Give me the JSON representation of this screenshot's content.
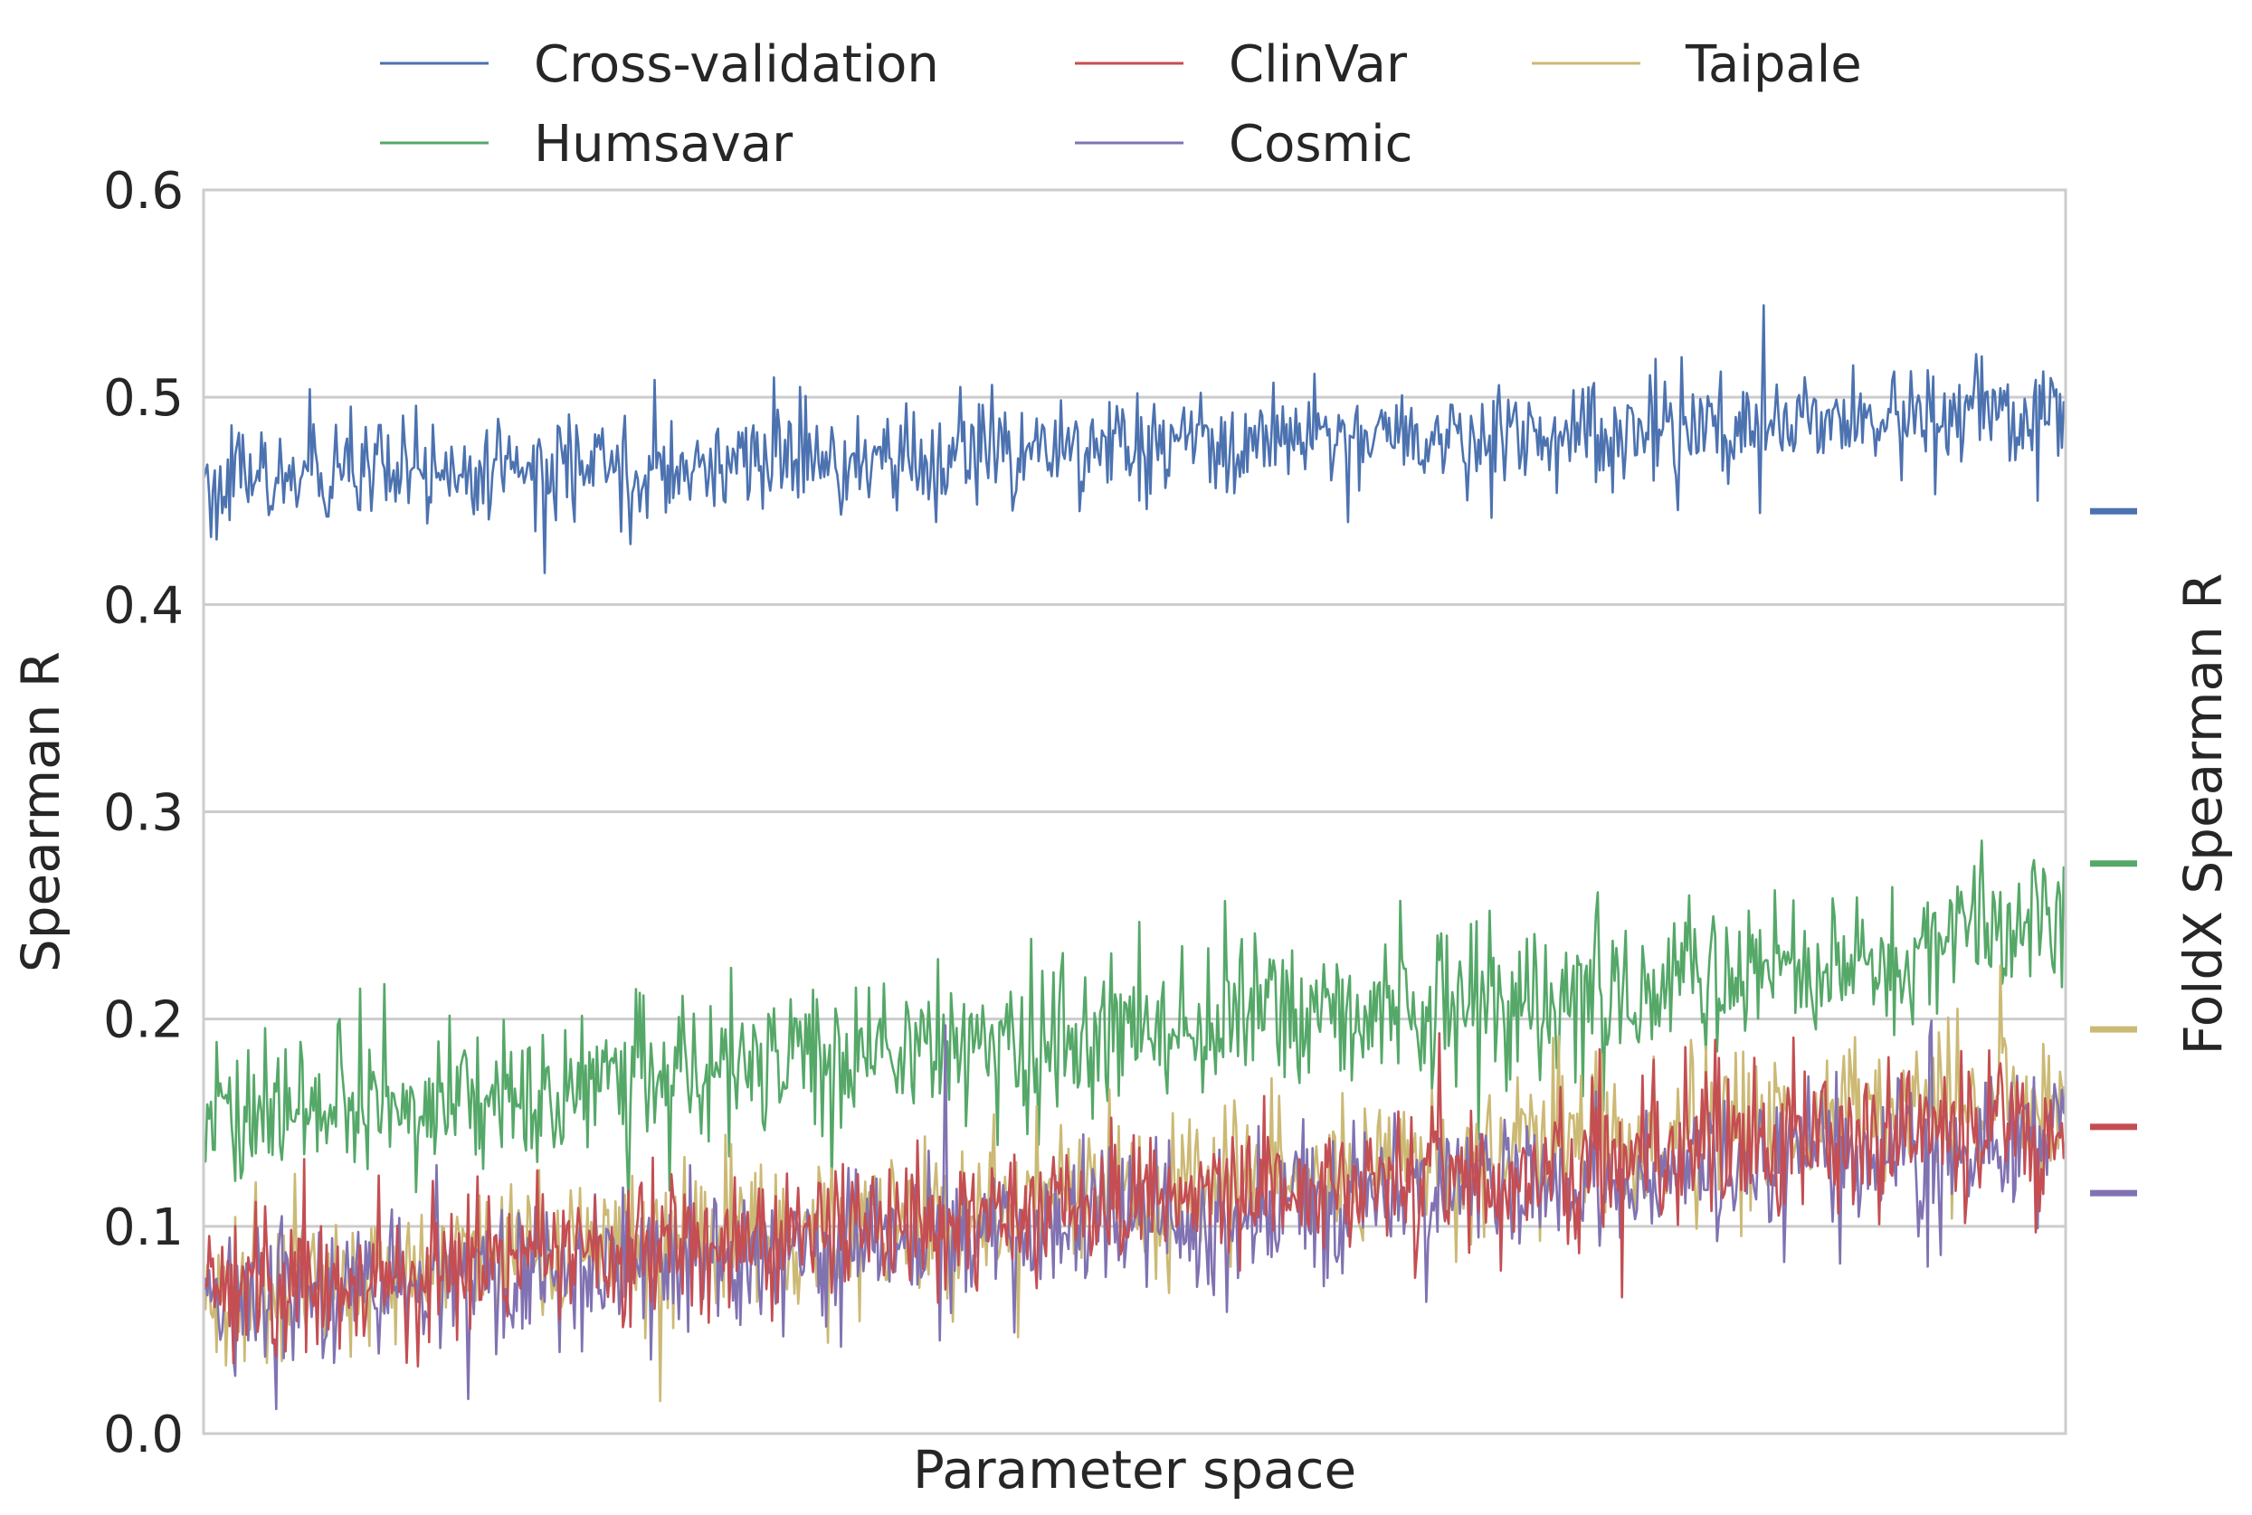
{
  "chart_data": {
    "type": "line",
    "title": "",
    "xlabel": "Parameter space",
    "ylabel": "Spearman R",
    "ylabel_right": "FoldX Spearman R",
    "ylim": [
      0.0,
      0.6
    ],
    "yticks": [
      0.0,
      0.1,
      0.2,
      0.3,
      0.4,
      0.5,
      0.6
    ],
    "ytick_labels": [
      "0.0",
      "0.1",
      "0.2",
      "0.3",
      "0.4",
      "0.5",
      "0.6"
    ],
    "x_ticks_shown": false,
    "grid": "horizontal",
    "legend_placement": "top, outside plot, 3 columns",
    "n_points": 1000,
    "series": [
      {
        "name": "Cross-validation",
        "color": "#4c72b0",
        "trend_start": 0.458,
        "trend_end": 0.493,
        "noise": 0.012,
        "foldx_value": 0.445
      },
      {
        "name": "Humsavar",
        "color": "#55a868",
        "trend_start": 0.152,
        "trend_end": 0.235,
        "noise": 0.018,
        "foldx_value": 0.275
      },
      {
        "name": "ClinVar",
        "color": "#c44e52",
        "trend_start": 0.07,
        "trend_end": 0.15,
        "noise": 0.017,
        "foldx_value": 0.148
      },
      {
        "name": "Cosmic",
        "color": "#8172b2",
        "trend_start": 0.062,
        "trend_end": 0.145,
        "noise": 0.017,
        "foldx_value": 0.116
      },
      {
        "name": "Taipale",
        "color": "#ccb974",
        "trend_start": 0.065,
        "trend_end": 0.165,
        "noise": 0.018,
        "foldx_value": 0.195
      }
    ],
    "legend_order": [
      "Cross-validation",
      "ClinVar",
      "Taipale",
      "Humsavar",
      "Cosmic"
    ],
    "draw_order": [
      "Cross-validation",
      "Humsavar",
      "Taipale",
      "Cosmic",
      "ClinVar"
    ]
  }
}
